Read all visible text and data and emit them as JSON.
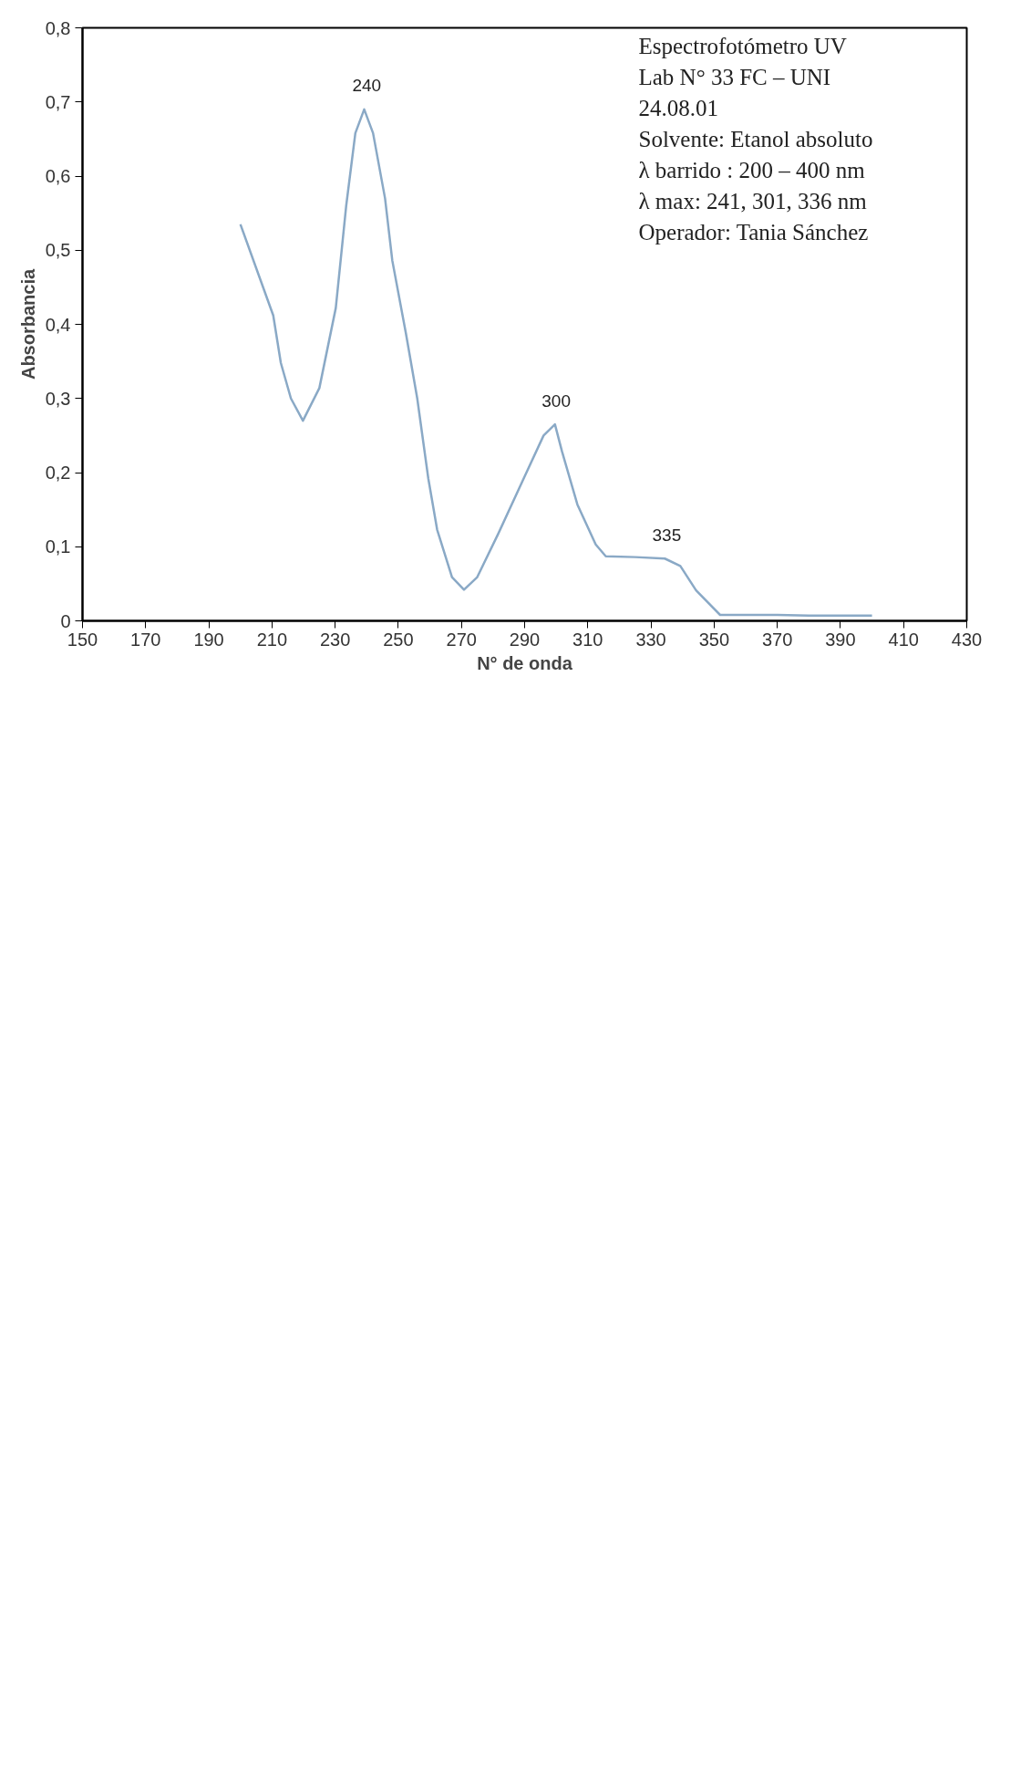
{
  "chart_data": {
    "type": "line",
    "xlabel": "N° de onda",
    "ylabel": "Absorbancia",
    "xlim": [
      150,
      430
    ],
    "ylim": [
      0,
      0.8
    ],
    "xticks": [
      150,
      170,
      190,
      210,
      230,
      250,
      270,
      290,
      310,
      330,
      350,
      370,
      390,
      410,
      430
    ],
    "yticks": [
      0,
      {
        "value": 0.1,
        "label": "0,1"
      },
      {
        "value": 0.2,
        "label": "0,2"
      },
      {
        "value": 0.3,
        "label": "0,3"
      },
      {
        "value": 0.4,
        "label": "0,4"
      },
      {
        "value": 0.5,
        "label": "0,5"
      },
      {
        "value": 0.6,
        "label": "0,6"
      },
      {
        "value": 0.7,
        "label": "0,7"
      },
      {
        "value": 0.8,
        "label": "0,8"
      }
    ],
    "x": [
      200,
      210.4,
      212.8,
      216,
      219.8,
      225,
      230.2,
      233.5,
      236.4,
      239.2,
      242,
      245.8,
      248.1,
      252.4,
      256,
      259.5,
      262.3,
      267,
      270.8,
      275,
      281.7,
      289.7,
      296,
      299.6,
      301.8,
      306.7,
      312.5,
      315.7,
      325,
      334.4,
      339.3,
      344.3,
      351.9,
      360,
      370,
      380,
      390,
      400
    ],
    "series": [
      {
        "color": "#8aa9c6",
        "values": [
          0.535,
          0.412,
          0.348,
          0.3,
          0.27,
          0.314,
          0.422,
          0.56,
          0.658,
          0.69,
          0.658,
          0.57,
          0.486,
          0.388,
          0.3,
          0.192,
          0.123,
          0.059,
          0.042,
          0.059,
          0.118,
          0.192,
          0.25,
          0.265,
          0.229,
          0.157,
          0.103,
          0.087,
          0.086,
          0.084,
          0.074,
          0.041,
          0.008,
          0.008,
          0.008,
          0.007,
          0.007,
          0.007
        ]
      }
    ],
    "annotations": [
      "Espectrofotómetro UV",
      "Lab N° 33 FC – UNI",
      "24.08.01",
      "Solvente: Etanol absoluto",
      "λ barrido : 200 – 400 nm",
      "λ max: 241, 301, 336 nm",
      "Operador: Tania Sánchez",
      {
        "text": "240",
        "x": 240,
        "y": 0.69
      },
      {
        "text": "300",
        "x": 300,
        "y": 0.265
      },
      {
        "text": "335",
        "x": 335,
        "y": 0.084
      }
    ]
  }
}
